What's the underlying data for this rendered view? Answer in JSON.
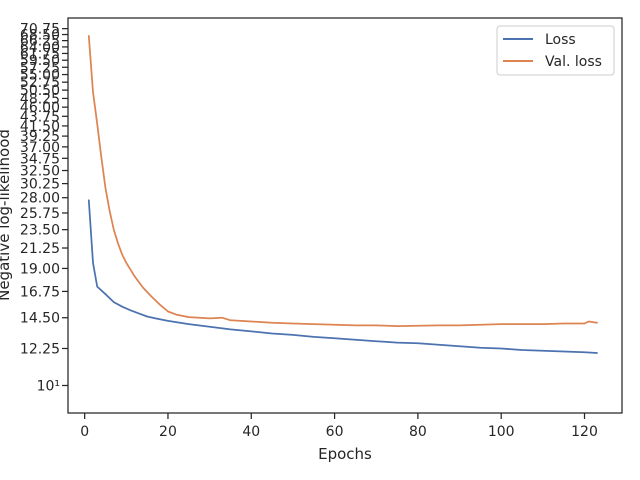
{
  "chart_data": {
    "type": "line",
    "xlabel": "Epochs",
    "ylabel": "Negative log-likelihood",
    "yscale": "log",
    "xlim": [
      -4,
      129
    ],
    "ylim": [
      8.6,
      75
    ],
    "x_ticks": [
      0,
      20,
      40,
      60,
      80,
      100,
      120
    ],
    "x_tick_labels": [
      "0",
      "20",
      "40",
      "60",
      "80",
      "100",
      "120"
    ],
    "y_ticks": [
      10,
      12.25,
      14.5,
      16.75,
      19.0,
      21.25,
      23.5,
      25.75,
      28.0,
      30.25,
      32.5,
      34.75,
      37.0,
      39.25,
      41.5,
      43.75,
      46.0,
      48.25,
      50.5,
      52.75,
      55.0,
      57.25,
      59.5,
      61.75,
      64.0,
      66.25,
      68.5,
      70.75
    ],
    "y_tick_labels": [
      "10¹",
      "12.25",
      "14.50",
      "16.75",
      "19.00",
      "21.25",
      "23.50",
      "25.75",
      "28.00",
      "30.25",
      "32.50",
      "34.75",
      "37.00",
      "39.25",
      "41.50",
      "43.75",
      "46.00",
      "48.25",
      "50.50",
      "52.75",
      "55.00",
      "57.25",
      "59.50",
      "61.75",
      "64.00",
      "66.25",
      "68.50",
      "70.75"
    ],
    "grid": false,
    "legend_position": "top-right",
    "series": [
      {
        "name": "Loss",
        "color": "#4c72b0",
        "x": [
          1,
          2,
          3,
          5,
          7,
          9,
          11,
          13,
          15,
          17,
          20,
          25,
          30,
          35,
          40,
          45,
          50,
          55,
          60,
          65,
          70,
          75,
          80,
          85,
          90,
          95,
          100,
          105,
          110,
          115,
          120,
          123
        ],
        "y": [
          27.6,
          19.6,
          17.2,
          16.5,
          15.8,
          15.4,
          15.1,
          14.85,
          14.6,
          14.45,
          14.25,
          14.0,
          13.8,
          13.6,
          13.45,
          13.3,
          13.2,
          13.05,
          12.95,
          12.85,
          12.75,
          12.65,
          12.6,
          12.5,
          12.4,
          12.3,
          12.25,
          12.15,
          12.1,
          12.05,
          12.0,
          11.95
        ]
      },
      {
        "name": "Val. loss",
        "color": "#dd8452",
        "x": [
          1,
          2,
          3,
          4,
          5,
          6,
          7,
          8,
          9,
          10,
          12,
          14,
          16,
          18,
          20,
          22,
          25,
          30,
          33,
          35,
          40,
          45,
          50,
          55,
          60,
          65,
          70,
          75,
          80,
          85,
          90,
          95,
          100,
          105,
          110,
          115,
          120,
          121,
          123
        ],
        "y": [
          68.0,
          50.0,
          42.0,
          35.0,
          29.5,
          26.0,
          23.5,
          21.8,
          20.5,
          19.6,
          18.2,
          17.1,
          16.3,
          15.6,
          15.0,
          14.75,
          14.55,
          14.45,
          14.5,
          14.3,
          14.2,
          14.1,
          14.05,
          14.0,
          13.95,
          13.9,
          13.9,
          13.85,
          13.88,
          13.9,
          13.9,
          13.95,
          14.0,
          14.0,
          14.0,
          14.05,
          14.05,
          14.2,
          14.1
        ]
      }
    ]
  }
}
